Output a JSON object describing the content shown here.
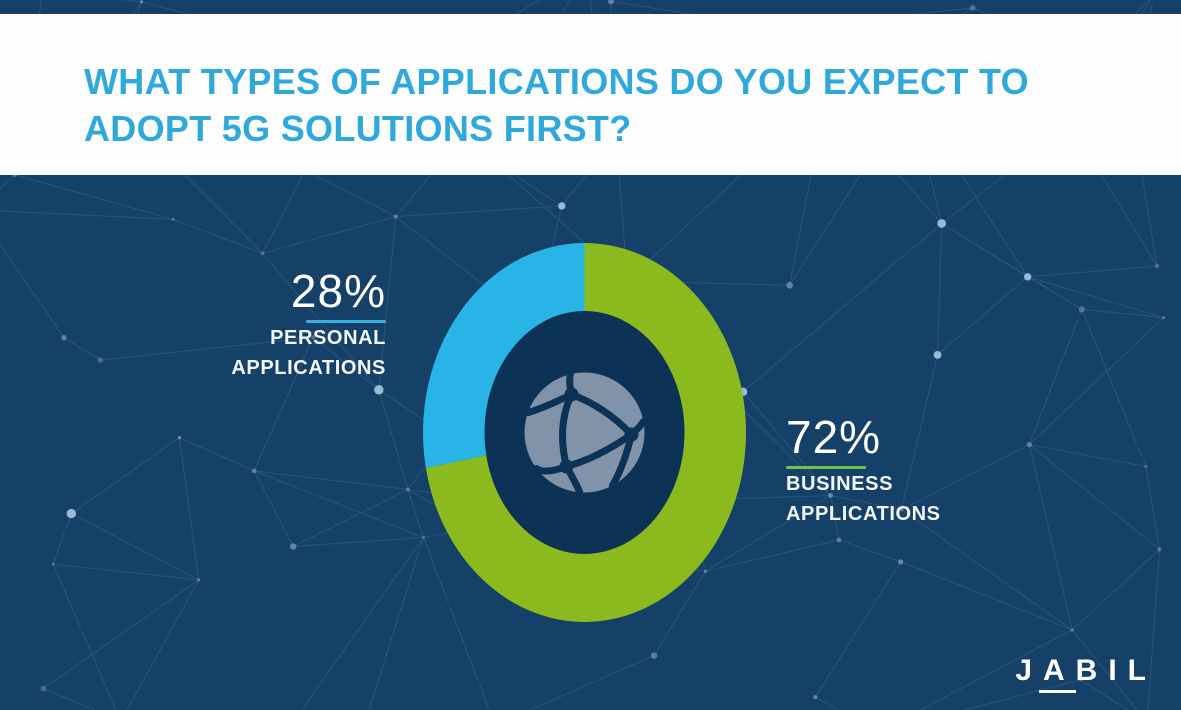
{
  "header": {
    "title_lines": [
      "WHAT TYPES OF APPLICATIONS DO YOU EXPECT TO",
      "ADOPT 5G SOLUTIONS FIRST?"
    ],
    "title_color": "#2fa9dc"
  },
  "chart_data": {
    "type": "pie",
    "subtype": "donut",
    "title": "WHAT TYPES OF APPLICATIONS DO YOU EXPECT TO ADOPT 5G SOLUTIONS FIRST?",
    "unit": "%",
    "direction": "clockwise",
    "start_angle_deg": 0,
    "segments": [
      {
        "label": "BUSINESS APPLICATIONS",
        "value": 72,
        "color": "#8bba1e"
      },
      {
        "label": "PERSONAL APPLICATIONS",
        "value": 28,
        "color": "#29b4e8"
      }
    ],
    "center_icon": "network-globe",
    "legend_position": "callouts-beside-chart"
  },
  "callouts": {
    "personal": {
      "percent": "28%",
      "name_line1": "PERSONAL",
      "name_line2": "APPLICATIONS",
      "underline_color": "#36aee0"
    },
    "business": {
      "percent": "72%",
      "name_line1": "BUSINESS",
      "name_line2": "APPLICATIONS",
      "underline_color": "#6fc14a"
    }
  },
  "branding": {
    "logo_text": "JABIL"
  },
  "colors": {
    "background": "#154067",
    "donut_hole": "#0c3355",
    "header_background": "#fdfdfe"
  }
}
